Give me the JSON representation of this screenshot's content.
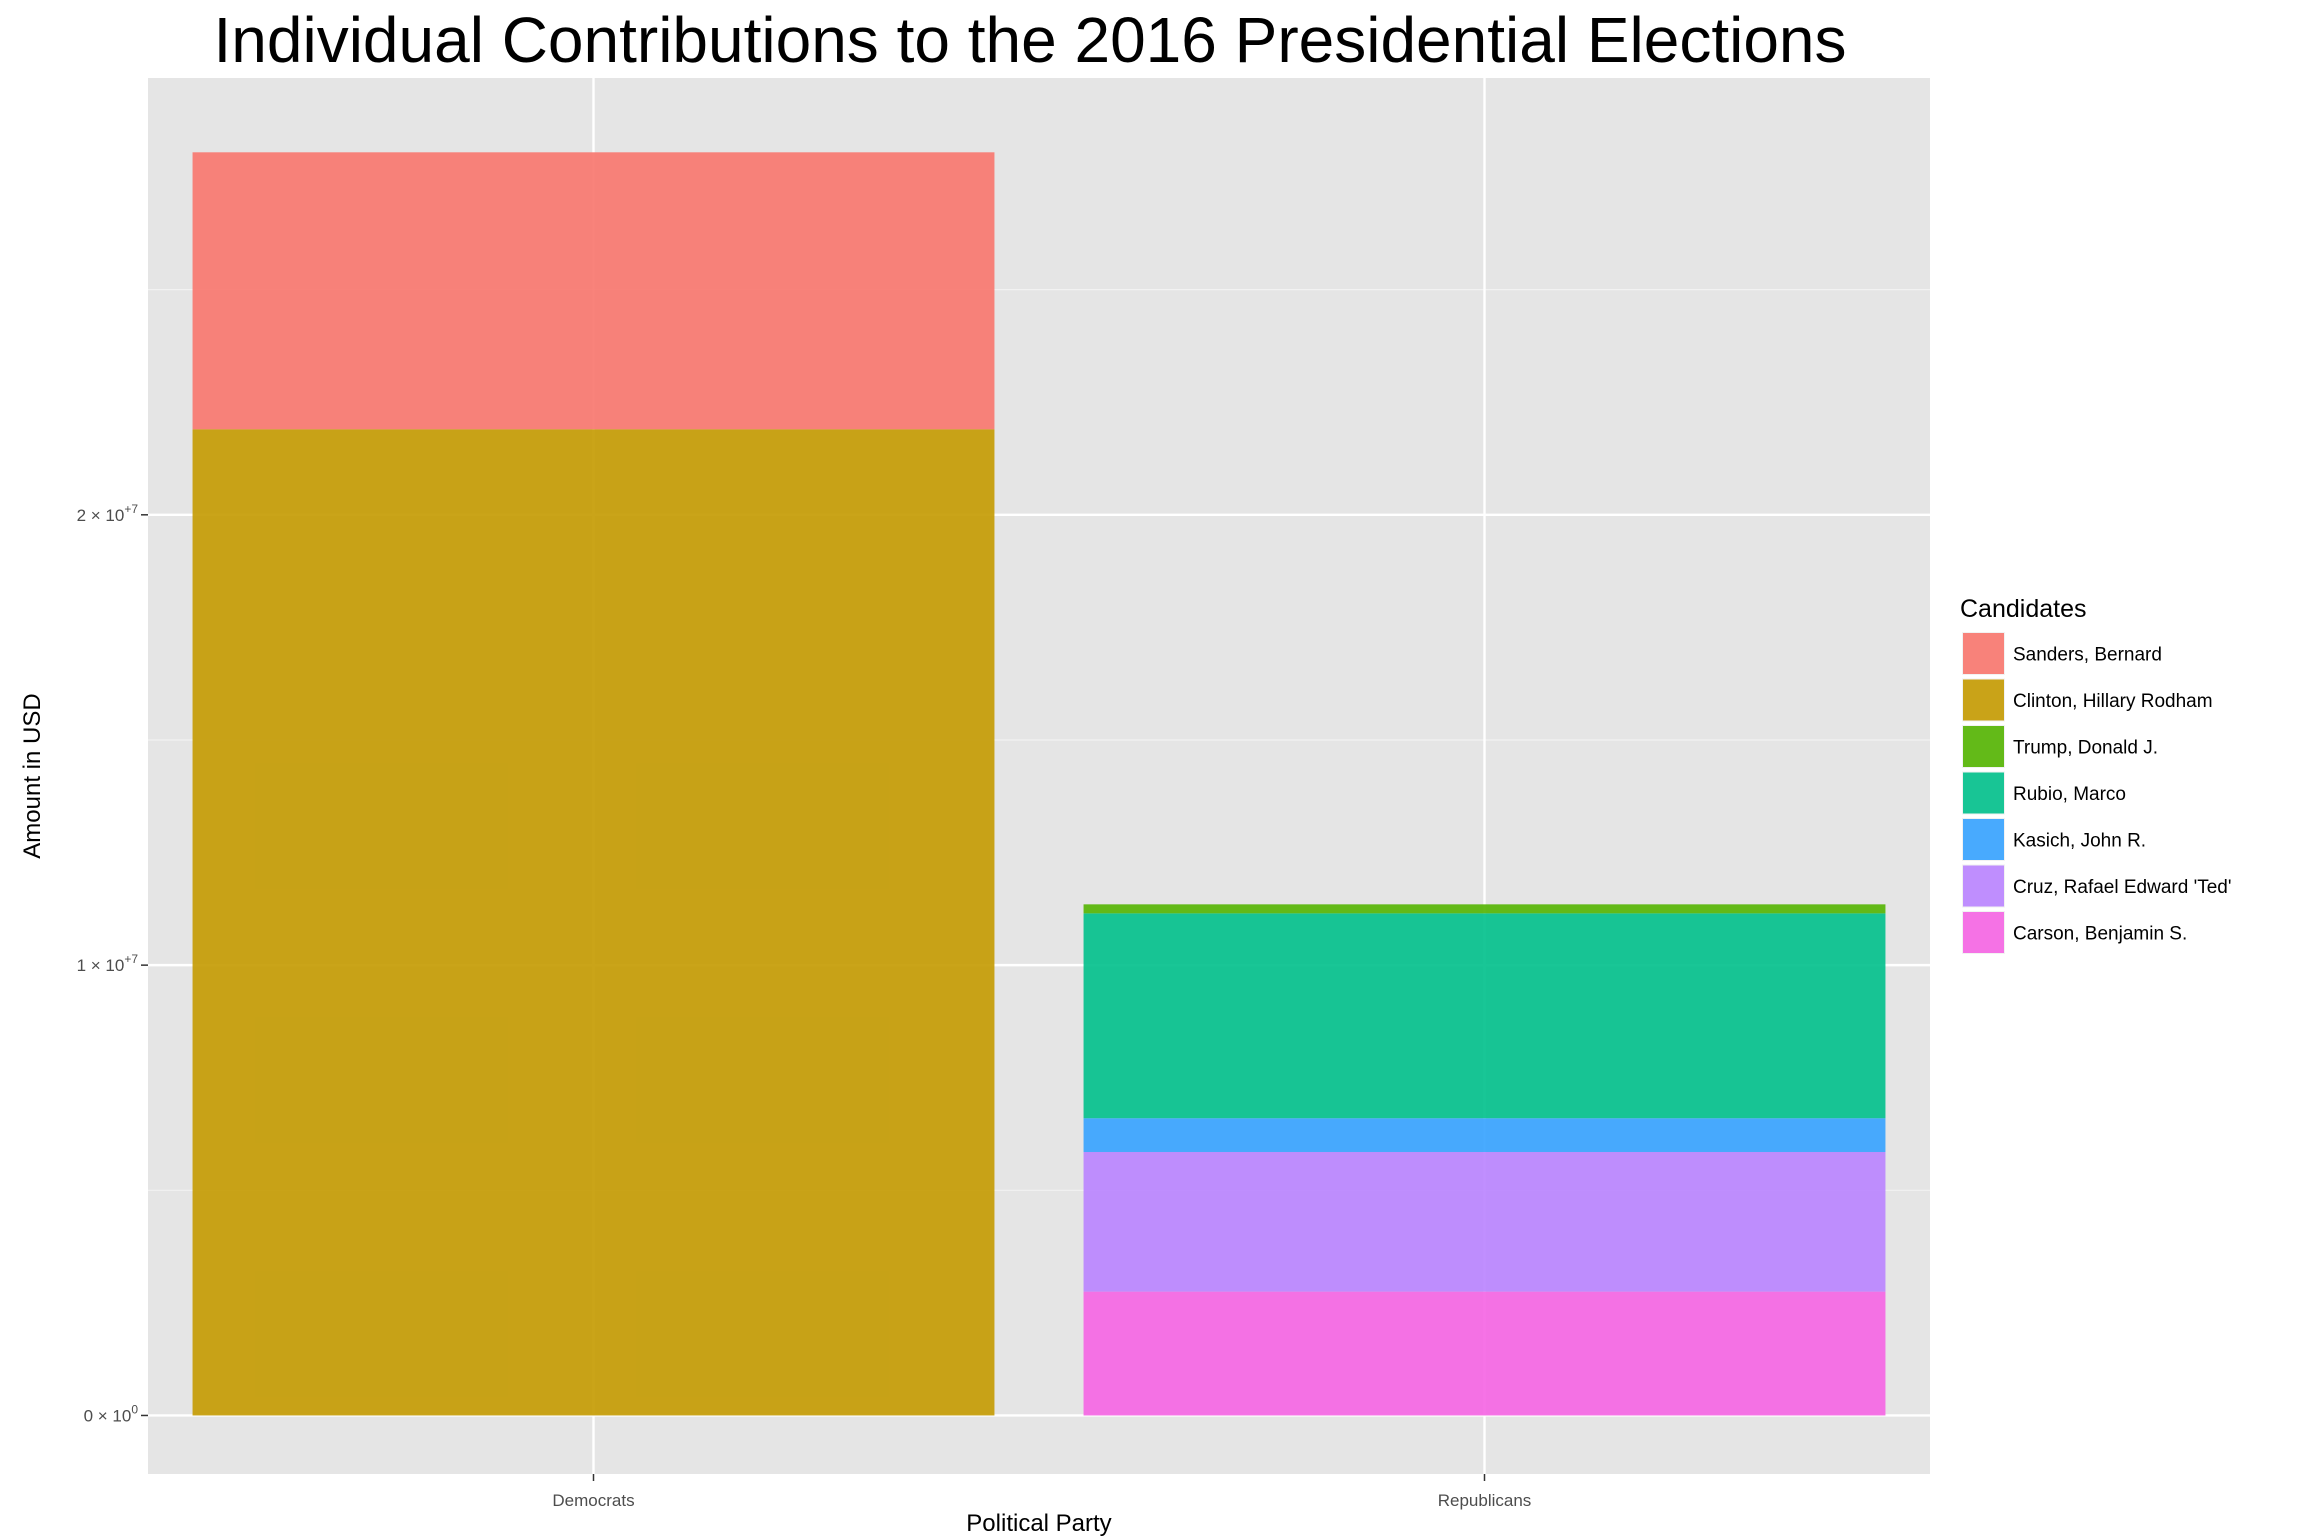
{
  "chart_data": {
    "type": "bar",
    "stacked": true,
    "title": "Individual Contributions to the 2016 Presidential Elections",
    "xlabel": "Political Party",
    "ylabel": "Amount in USD",
    "categories": [
      "Democrats",
      "Republicans"
    ],
    "ylim": [
      -1300000,
      29700000
    ],
    "yticks": [
      {
        "value": 0,
        "mantissa": "0",
        "exponent": "0"
      },
      {
        "value": 10000000,
        "mantissa": "1",
        "exponent": "+7"
      },
      {
        "value": 20000000,
        "mantissa": "2",
        "exponent": "+7"
      }
    ],
    "y_minor_ticks": [
      5000000,
      15000000,
      25000000
    ],
    "grid": true,
    "legend": {
      "title": "Candidates",
      "placement": "right"
    },
    "series": [
      {
        "name": "Carson, Benjamin S.",
        "color": "#F564E3",
        "values": [
          0,
          2750000
        ]
      },
      {
        "name": "Cruz, Rafael Edward 'Ted'",
        "color": "#B983FF",
        "values": [
          0,
          3100000
        ]
      },
      {
        "name": "Kasich, John R.",
        "color": "#35A2FF",
        "values": [
          0,
          750000
        ]
      },
      {
        "name": "Rubio, Marco",
        "color": "#00C08B",
        "values": [
          0,
          4550000
        ]
      },
      {
        "name": "Trump, Donald J.",
        "color": "#53B400",
        "values": [
          0,
          200000
        ]
      },
      {
        "name": "Clinton, Hillary Rodham",
        "color": "#C49A00",
        "values": [
          21900000,
          0
        ]
      },
      {
        "name": "Sanders, Bernard",
        "color": "#F8766D",
        "values": [
          6150000,
          0
        ]
      }
    ],
    "legend_order": [
      "Sanders, Bernard",
      "Clinton, Hillary Rodham",
      "Trump, Donald J.",
      "Rubio, Marco",
      "Kasich, John R.",
      "Cruz, Rafael Edward 'Ted'",
      "Carson, Benjamin S."
    ]
  }
}
